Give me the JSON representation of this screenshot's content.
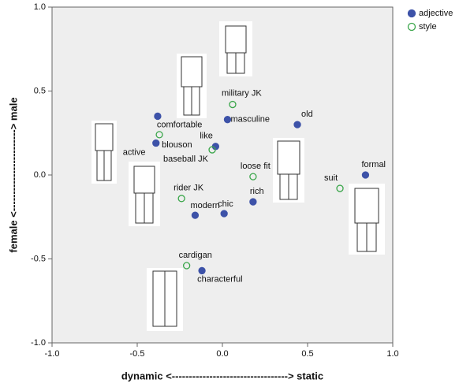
{
  "chart_data": {
    "type": "scatter",
    "x_label": "dynamic <----------------------------------> static",
    "y_label": "female <------------------------> male",
    "xlim": [
      -1,
      1
    ],
    "ylim": [
      -1,
      1
    ],
    "xticks": [
      {
        "value": -1,
        "label": "-1.0"
      },
      -0.5,
      {
        "value": 0,
        "label": "0.0"
      },
      0.5,
      {
        "value": 1,
        "label": "1.0"
      }
    ],
    "yticks": [
      {
        "value": -1,
        "label": "-1.0"
      },
      -0.5,
      {
        "value": 0,
        "label": "0.0"
      },
      0.5,
      {
        "value": 1,
        "label": "1.0"
      }
    ],
    "legend": "top-right",
    "series": [
      {
        "name": "adjective",
        "color": "#3d52a8",
        "filled": true,
        "labels": [
          "comfortable",
          "active",
          "like",
          "masculine",
          "old",
          "formal",
          "rich",
          "chic",
          "modern",
          "characterful"
        ],
        "x": [
          -0.38,
          -0.39,
          -0.04,
          0.03,
          0.44,
          0.84,
          0.18,
          0.01,
          -0.16,
          -0.12
        ],
        "values": [
          0.35,
          0.19,
          0.17,
          0.33,
          0.3,
          0.0,
          -0.16,
          -0.23,
          -0.24,
          -0.57
        ]
      },
      {
        "name": "style",
        "color": "#3aa64a",
        "filled": false,
        "labels": [
          "military JK",
          "blouson",
          "baseball JK",
          "loose fit",
          "suit",
          "rider JK",
          "cardigan"
        ],
        "x": [
          0.06,
          -0.37,
          -0.06,
          0.18,
          0.69,
          -0.24,
          -0.21
        ],
        "values": [
          0.42,
          0.24,
          0.15,
          -0.01,
          -0.08,
          -0.14,
          -0.54
        ]
      }
    ]
  }
}
